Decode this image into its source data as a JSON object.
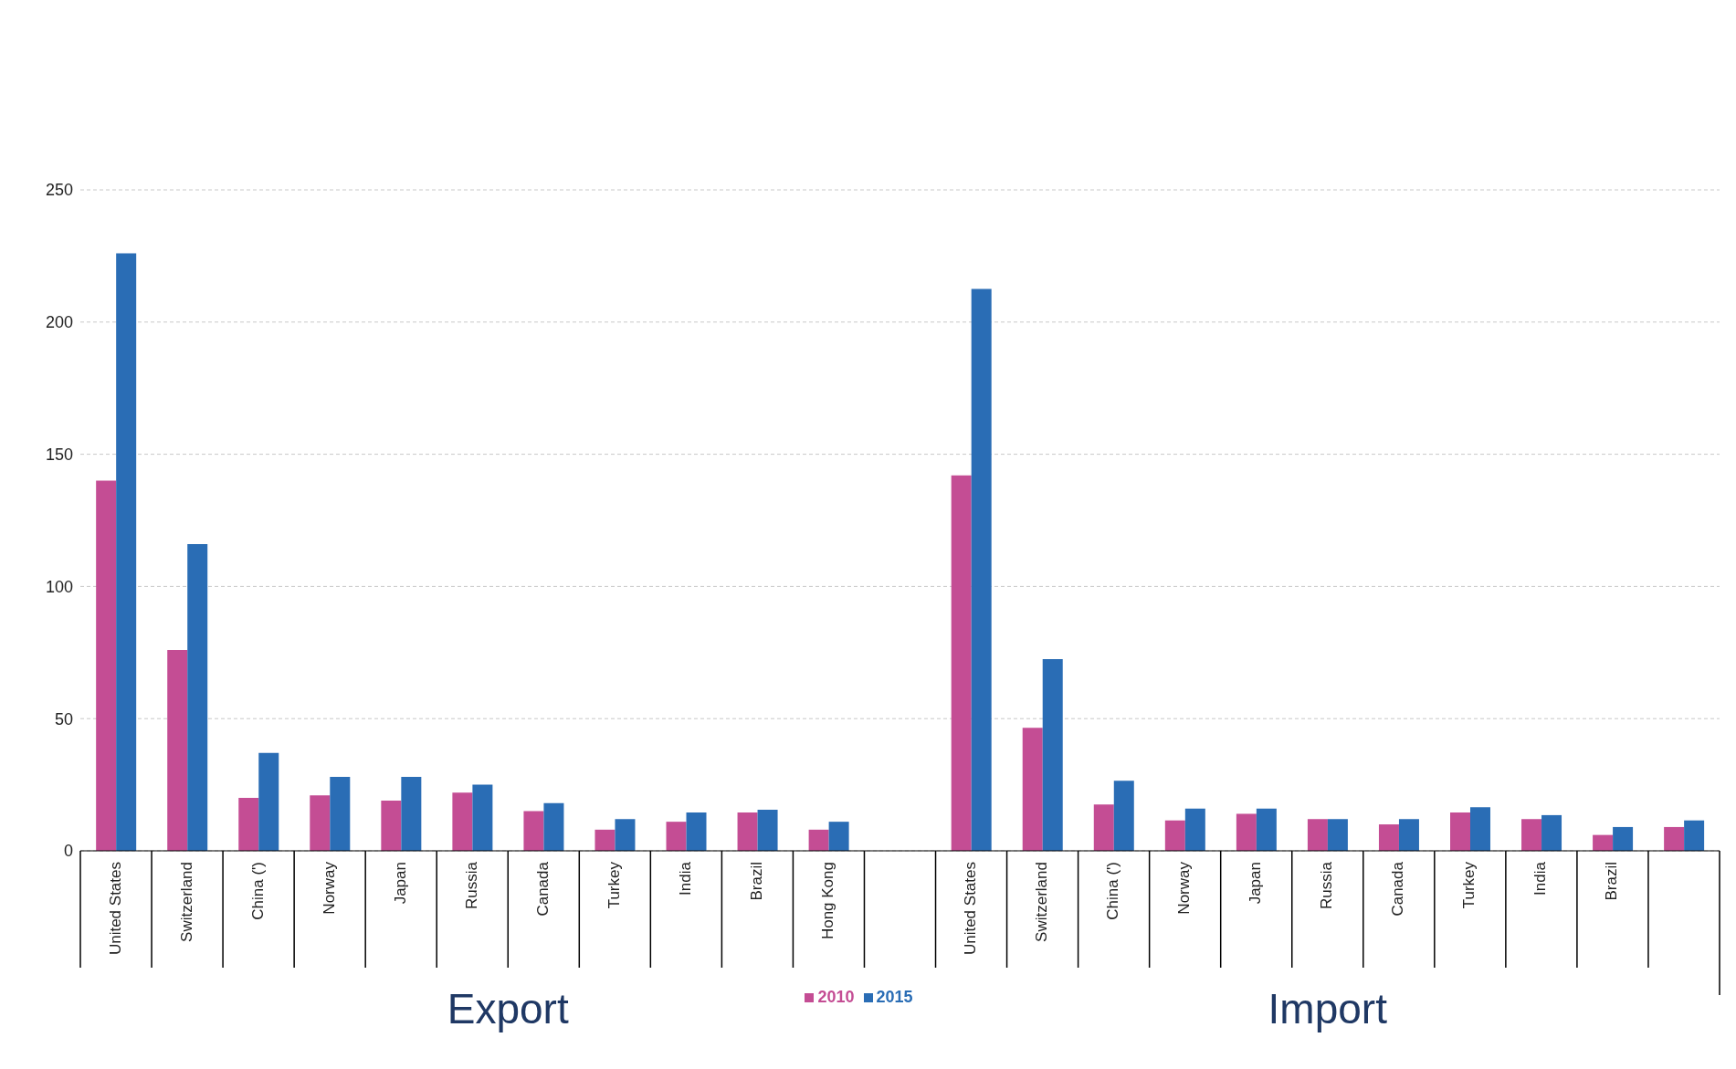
{
  "chart_data": {
    "type": "bar",
    "categories": [
      "United States",
      "Switzerland",
      "China (')",
      "Norway",
      "Japan",
      "Russia",
      "Canada",
      "Turkey",
      "India",
      "Brazil",
      "Hong Kong",
      null,
      "United States",
      "Switzerland",
      "China (')",
      "Norway",
      "Japan",
      "Russia",
      "Canada",
      "Turkey",
      "India",
      "Brazil",
      null
    ],
    "series": [
      {
        "name": "2010",
        "color": "#c44d94",
        "values": [
          140,
          76,
          20,
          21,
          19,
          22,
          15,
          8,
          11,
          14.5,
          8,
          null,
          142,
          46.5,
          17.5,
          11.5,
          14,
          12,
          10,
          14.5,
          12,
          6,
          9
        ]
      },
      {
        "name": "2015",
        "color": "#2a6db5",
        "values": [
          226,
          116,
          37,
          28,
          28,
          25,
          18,
          12,
          14.5,
          15.5,
          11,
          null,
          212.5,
          72.5,
          26.5,
          16,
          16,
          12,
          12,
          16.5,
          13.5,
          9,
          11.5
        ]
      }
    ],
    "ylim": [
      0,
      250
    ],
    "yticks": [
      0,
      50,
      100,
      150,
      200,
      250
    ],
    "grid": "y",
    "legend": "bottom",
    "annotations": [
      "Export",
      "Import"
    ]
  }
}
